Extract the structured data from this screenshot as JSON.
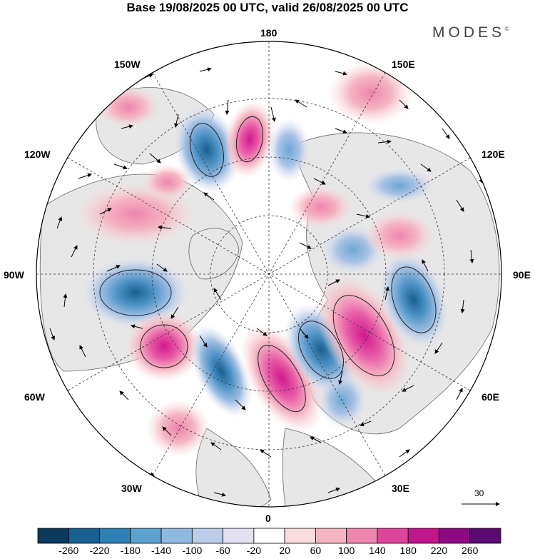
{
  "title": "Base 19/08/2025 00 UTC, valid 26/08/2025 00 UTC",
  "brand": "MODES",
  "brand_mark": "©",
  "longitude_labels": {
    "top": "180",
    "bottom": "0",
    "left": "90W",
    "right": "90E",
    "upper_left": "150W",
    "upper_left_2": "120W",
    "lower_left": "60W",
    "lower_left_2": "30W",
    "upper_right": "150E",
    "upper_right_2": "120E",
    "lower_right": "60E",
    "lower_right_2": "30E"
  },
  "vector_reference": "30",
  "colorbar": {
    "ticks": [
      "-260",
      "-220",
      "-180",
      "-140",
      "-100",
      "-60",
      "-20",
      "20",
      "60",
      "100",
      "140",
      "180",
      "220",
      "260"
    ],
    "colors": [
      "#0b3b5c",
      "#17608f",
      "#2d7fb6",
      "#5da1cf",
      "#90b9df",
      "#bccde9",
      "#e2e1f1",
      "#ffffff",
      "#f9dcdc",
      "#f4b5c3",
      "#ee85ae",
      "#e0449b",
      "#c2168b",
      "#8f0a82",
      "#5a0b72"
    ]
  },
  "colors": {
    "land_fill": "#e8e8e8",
    "coast_line": "#555555",
    "grid_line": "#333333"
  }
}
